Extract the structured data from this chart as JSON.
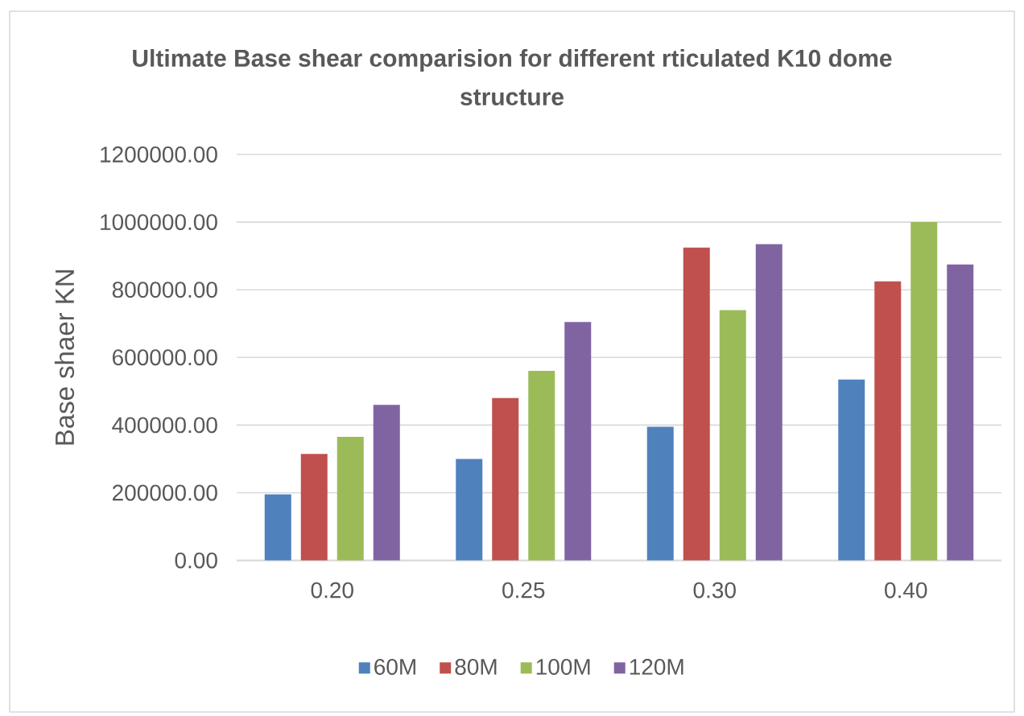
{
  "chart_data": {
    "type": "bar",
    "title": "Ultimate Base shear comparision for different rticulated K10 dome structure",
    "ylabel": "Base shaer KN",
    "categories": [
      "0.20",
      "0.25",
      "0.30",
      "0.40"
    ],
    "series": [
      {
        "name": "60M",
        "color": "#4f81bd",
        "values": [
          195000,
          300000,
          395000,
          535000
        ]
      },
      {
        "name": "80M",
        "color": "#c0504d",
        "values": [
          315000,
          480000,
          925000,
          825000
        ]
      },
      {
        "name": "100M",
        "color": "#9bbb59",
        "values": [
          365000,
          560000,
          740000,
          1000000
        ]
      },
      {
        "name": "120M",
        "color": "#8064a2",
        "values": [
          460000,
          705000,
          935000,
          875000
        ]
      }
    ],
    "ylim": [
      0,
      1200000
    ],
    "yticks": [
      {
        "value": 0,
        "label": "0.00"
      },
      {
        "value": 200000,
        "label": "200000.00"
      },
      {
        "value": 400000,
        "label": "400000.00"
      },
      {
        "value": 600000,
        "label": "600000.00"
      },
      {
        "value": 800000,
        "label": "800000.00"
      },
      {
        "value": 1000000,
        "label": "1000000.00"
      },
      {
        "value": 1200000,
        "label": "1200000.00"
      }
    ],
    "grid": "y",
    "legend": "bottom"
  }
}
